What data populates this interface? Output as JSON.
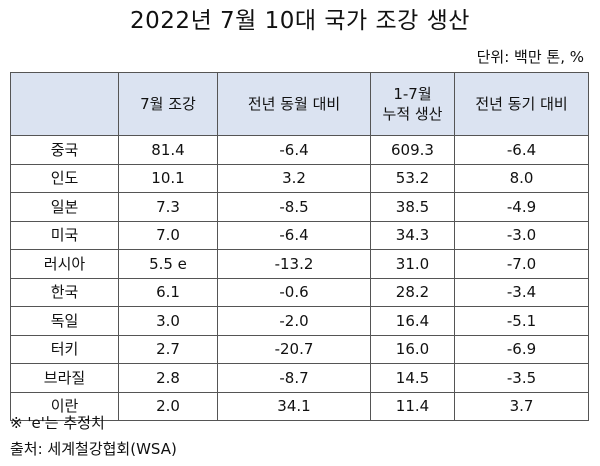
{
  "title": "2022년 7월 10대 국가 조강 생산",
  "unit": "단위: 백만 톤, %",
  "table": {
    "headers": {
      "country": "",
      "july_output": "7월 조강",
      "yoy_month": "전년 동월 대비",
      "cumulative_line1": "1-7월",
      "cumulative_line2": "누적 생산",
      "yoy_period": "전년 동기 대비"
    },
    "rows": [
      {
        "country": "중국",
        "july_output": "81.4",
        "yoy_month": "-6.4",
        "cumulative": "609.3",
        "yoy_period": "-6.4"
      },
      {
        "country": "인도",
        "july_output": "10.1",
        "yoy_month": "3.2",
        "cumulative": "53.2",
        "yoy_period": "8.0"
      },
      {
        "country": "일본",
        "july_output": "7.3",
        "yoy_month": "-8.5",
        "cumulative": "38.5",
        "yoy_period": "-4.9"
      },
      {
        "country": "미국",
        "july_output": "7.0",
        "yoy_month": "-6.4",
        "cumulative": "34.3",
        "yoy_period": "-3.0"
      },
      {
        "country": "러시아",
        "july_output": "5.5 e",
        "yoy_month": "-13.2",
        "cumulative": "31.0",
        "yoy_period": "-7.0"
      },
      {
        "country": "한국",
        "july_output": "6.1",
        "yoy_month": "-0.6",
        "cumulative": "28.2",
        "yoy_period": "-3.4"
      },
      {
        "country": "독일",
        "july_output": "3.0",
        "yoy_month": "-2.0",
        "cumulative": "16.4",
        "yoy_period": "-5.1"
      },
      {
        "country": "터키",
        "july_output": "2.7",
        "yoy_month": "-20.7",
        "cumulative": "16.0",
        "yoy_period": "-6.9"
      },
      {
        "country": "브라질",
        "july_output": "2.8",
        "yoy_month": "-8.7",
        "cumulative": "14.5",
        "yoy_period": "-3.5"
      },
      {
        "country": "이란",
        "july_output": "2.0",
        "yoy_month": "34.1",
        "cumulative": "11.4",
        "yoy_period": "3.7"
      }
    ]
  },
  "notes": {
    "estimate": "※ 'e'는 추정치",
    "source": "출처: 세계철강협회(WSA)"
  },
  "colors": {
    "header_background": "#dbe3f1",
    "border": "#555555",
    "text": "#111111"
  }
}
